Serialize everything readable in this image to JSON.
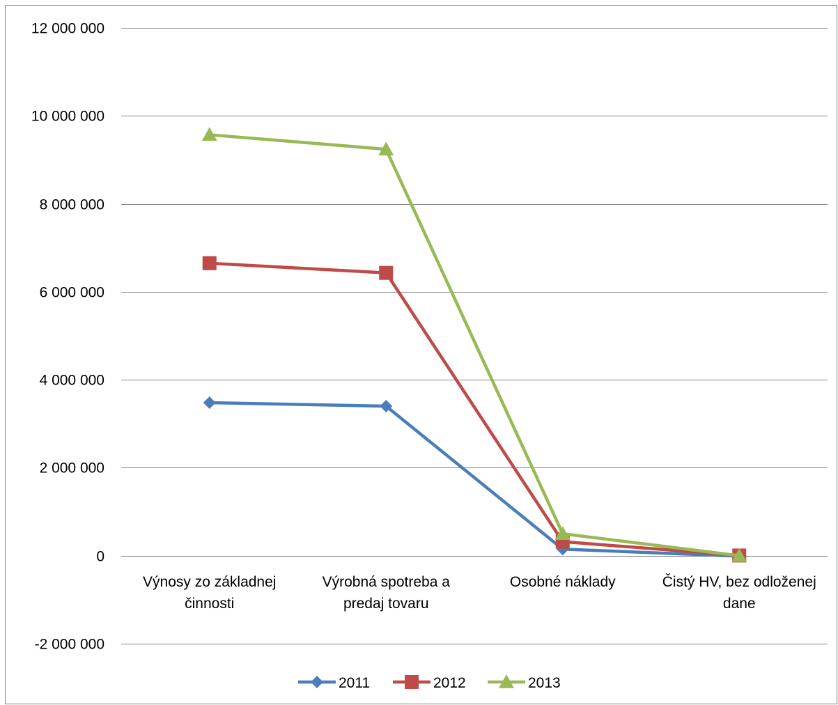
{
  "chart_data": {
    "type": "line",
    "categories": [
      [
        "Výnosy zo základnej",
        "činnosti"
      ],
      [
        "Výrobná spotreba a",
        "predaj tovaru"
      ],
      [
        "Osobné náklady"
      ],
      [
        "Čistý HV, bez odloženej",
        "dane"
      ]
    ],
    "series": [
      {
        "name": "2011",
        "values": [
          3480000,
          3400000,
          150000,
          -10000
        ],
        "color": "#4a7ebb",
        "marker": "diamond"
      },
      {
        "name": "2012",
        "values": [
          6650000,
          6430000,
          320000,
          5000
        ],
        "color": "#be4b48",
        "marker": "square"
      },
      {
        "name": "2013",
        "values": [
          9570000,
          9240000,
          500000,
          0
        ],
        "color": "#98b954",
        "marker": "triangle"
      }
    ],
    "ylim": [
      -2000000,
      12000000
    ],
    "yticks": [
      -2000000,
      0,
      2000000,
      4000000,
      6000000,
      8000000,
      10000000,
      12000000
    ],
    "ytick_labels": [
      "-2 000 000",
      "0",
      "2 000 000",
      "4 000 000",
      "6 000 000",
      "8 000 000",
      "10 000 000",
      "12 000 000"
    ],
    "grid": true,
    "legend_position": "bottom"
  }
}
